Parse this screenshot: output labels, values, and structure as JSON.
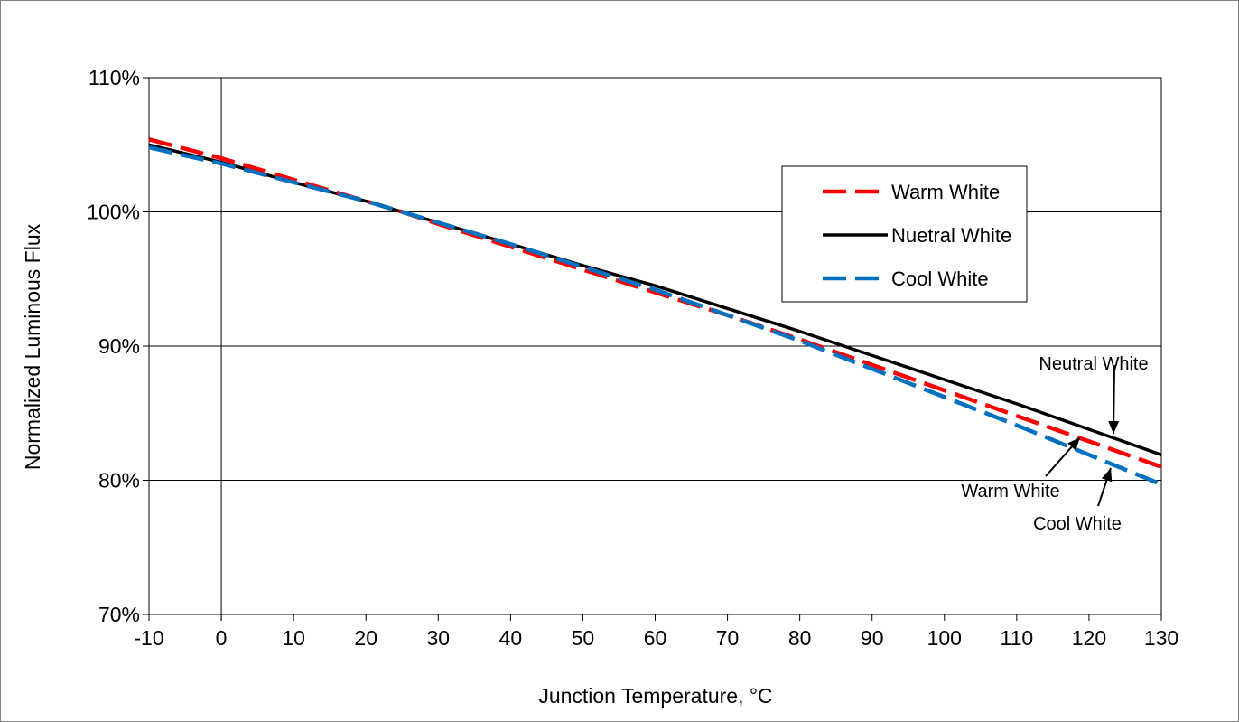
{
  "chart_data": {
    "type": "line",
    "title": "",
    "xlabel": "Junction Temperature, °C",
    "ylabel": "Normalized Luminous Flux",
    "xlim": [
      -10,
      130
    ],
    "ylim": [
      70,
      110
    ],
    "x_ticks": [
      "-10",
      "0",
      "10",
      "20",
      "30",
      "40",
      "50",
      "60",
      "70",
      "80",
      "90",
      "100",
      "110",
      "120",
      "130"
    ],
    "y_ticks": [
      "70%",
      "80%",
      "90%",
      "100%",
      "110%"
    ],
    "grid": "horizontal",
    "legend_position": "top-right",
    "series": [
      {
        "name": "Warm White",
        "color": "#ff0000",
        "style": "dashed",
        "x": [
          -10,
          0,
          10,
          20,
          25,
          30,
          40,
          50,
          60,
          70,
          80,
          90,
          100,
          110,
          120,
          130
        ],
        "y": [
          105.4,
          104.0,
          102.4,
          100.8,
          100.0,
          99.1,
          97.4,
          95.7,
          94.0,
          92.3,
          90.5,
          88.6,
          86.7,
          84.8,
          82.9,
          81.0
        ]
      },
      {
        "name": "Nuetral White",
        "color": "#000000",
        "style": "solid",
        "x": [
          -10,
          0,
          10,
          20,
          25,
          30,
          40,
          50,
          60,
          70,
          80,
          90,
          100,
          110,
          120,
          130
        ],
        "y": [
          105.0,
          103.7,
          102.2,
          100.8,
          100.0,
          99.2,
          97.6,
          96.0,
          94.5,
          92.8,
          91.1,
          89.3,
          87.5,
          85.7,
          83.8,
          81.9
        ]
      },
      {
        "name": "Cool White",
        "color": "#0070c0",
        "style": "dashed",
        "x": [
          -10,
          0,
          10,
          20,
          25,
          30,
          40,
          50,
          60,
          70,
          80,
          90,
          100,
          110,
          120,
          130
        ],
        "y": [
          104.8,
          103.6,
          102.2,
          100.8,
          100.0,
          99.2,
          97.6,
          95.9,
          94.2,
          92.3,
          90.4,
          88.3,
          86.2,
          84.1,
          81.9,
          79.7
        ]
      }
    ],
    "annotations": [
      {
        "text": "Neutral White",
        "x_data": 123,
        "y_data": 83.2
      },
      {
        "text": "Warm White",
        "x_data": 119,
        "y_data": 83.2
      },
      {
        "text": "Cool White",
        "x_data": 123,
        "y_data": 81.5
      }
    ]
  }
}
